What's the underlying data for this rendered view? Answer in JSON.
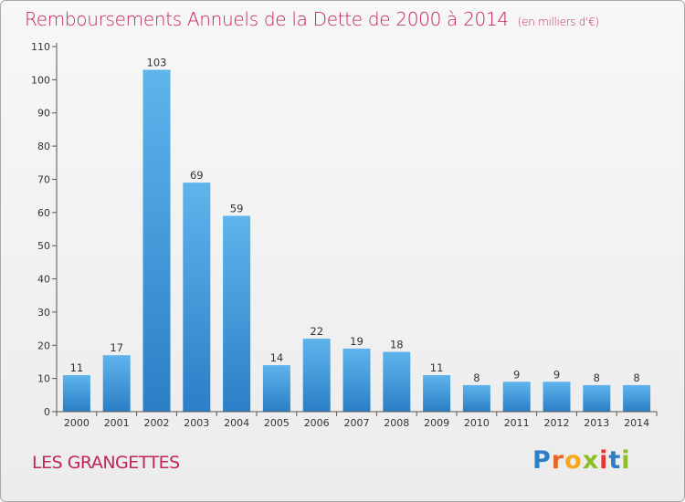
{
  "title": "Remboursements Annuels de la Dette de 2000 à 2014",
  "subtitle": "(en milliers d'€)",
  "commune": "LES GRANGETTES",
  "brand": {
    "letters": [
      "P",
      "r",
      "o",
      "x",
      "i",
      "t",
      "i"
    ],
    "colors": [
      "#2f7fc8",
      "#e8662a",
      "#f3a81d",
      "#8cbf26",
      "#e3382e",
      "#2f7fc8",
      "#8cbf26"
    ]
  },
  "colors": {
    "bar_top": "#5fb4ec",
    "bar_bottom": "#2a7fc6",
    "title": "#c3245b"
  },
  "chart_data": {
    "type": "bar",
    "title": "Remboursements Annuels de la Dette de 2000 à 2014",
    "subtitle": "(en milliers d'€)",
    "categories": [
      "2000",
      "2001",
      "2002",
      "2003",
      "2004",
      "2005",
      "2006",
      "2007",
      "2008",
      "2009",
      "2010",
      "2011",
      "2012",
      "2013",
      "2014"
    ],
    "values": [
      11,
      17,
      103,
      69,
      59,
      14,
      22,
      19,
      18,
      11,
      8,
      9,
      9,
      8,
      8
    ],
    "ylim": [
      0,
      110
    ],
    "yticks": [
      0,
      10,
      20,
      30,
      40,
      50,
      60,
      70,
      80,
      90,
      100,
      110
    ],
    "grid": false,
    "data_labels": true
  }
}
